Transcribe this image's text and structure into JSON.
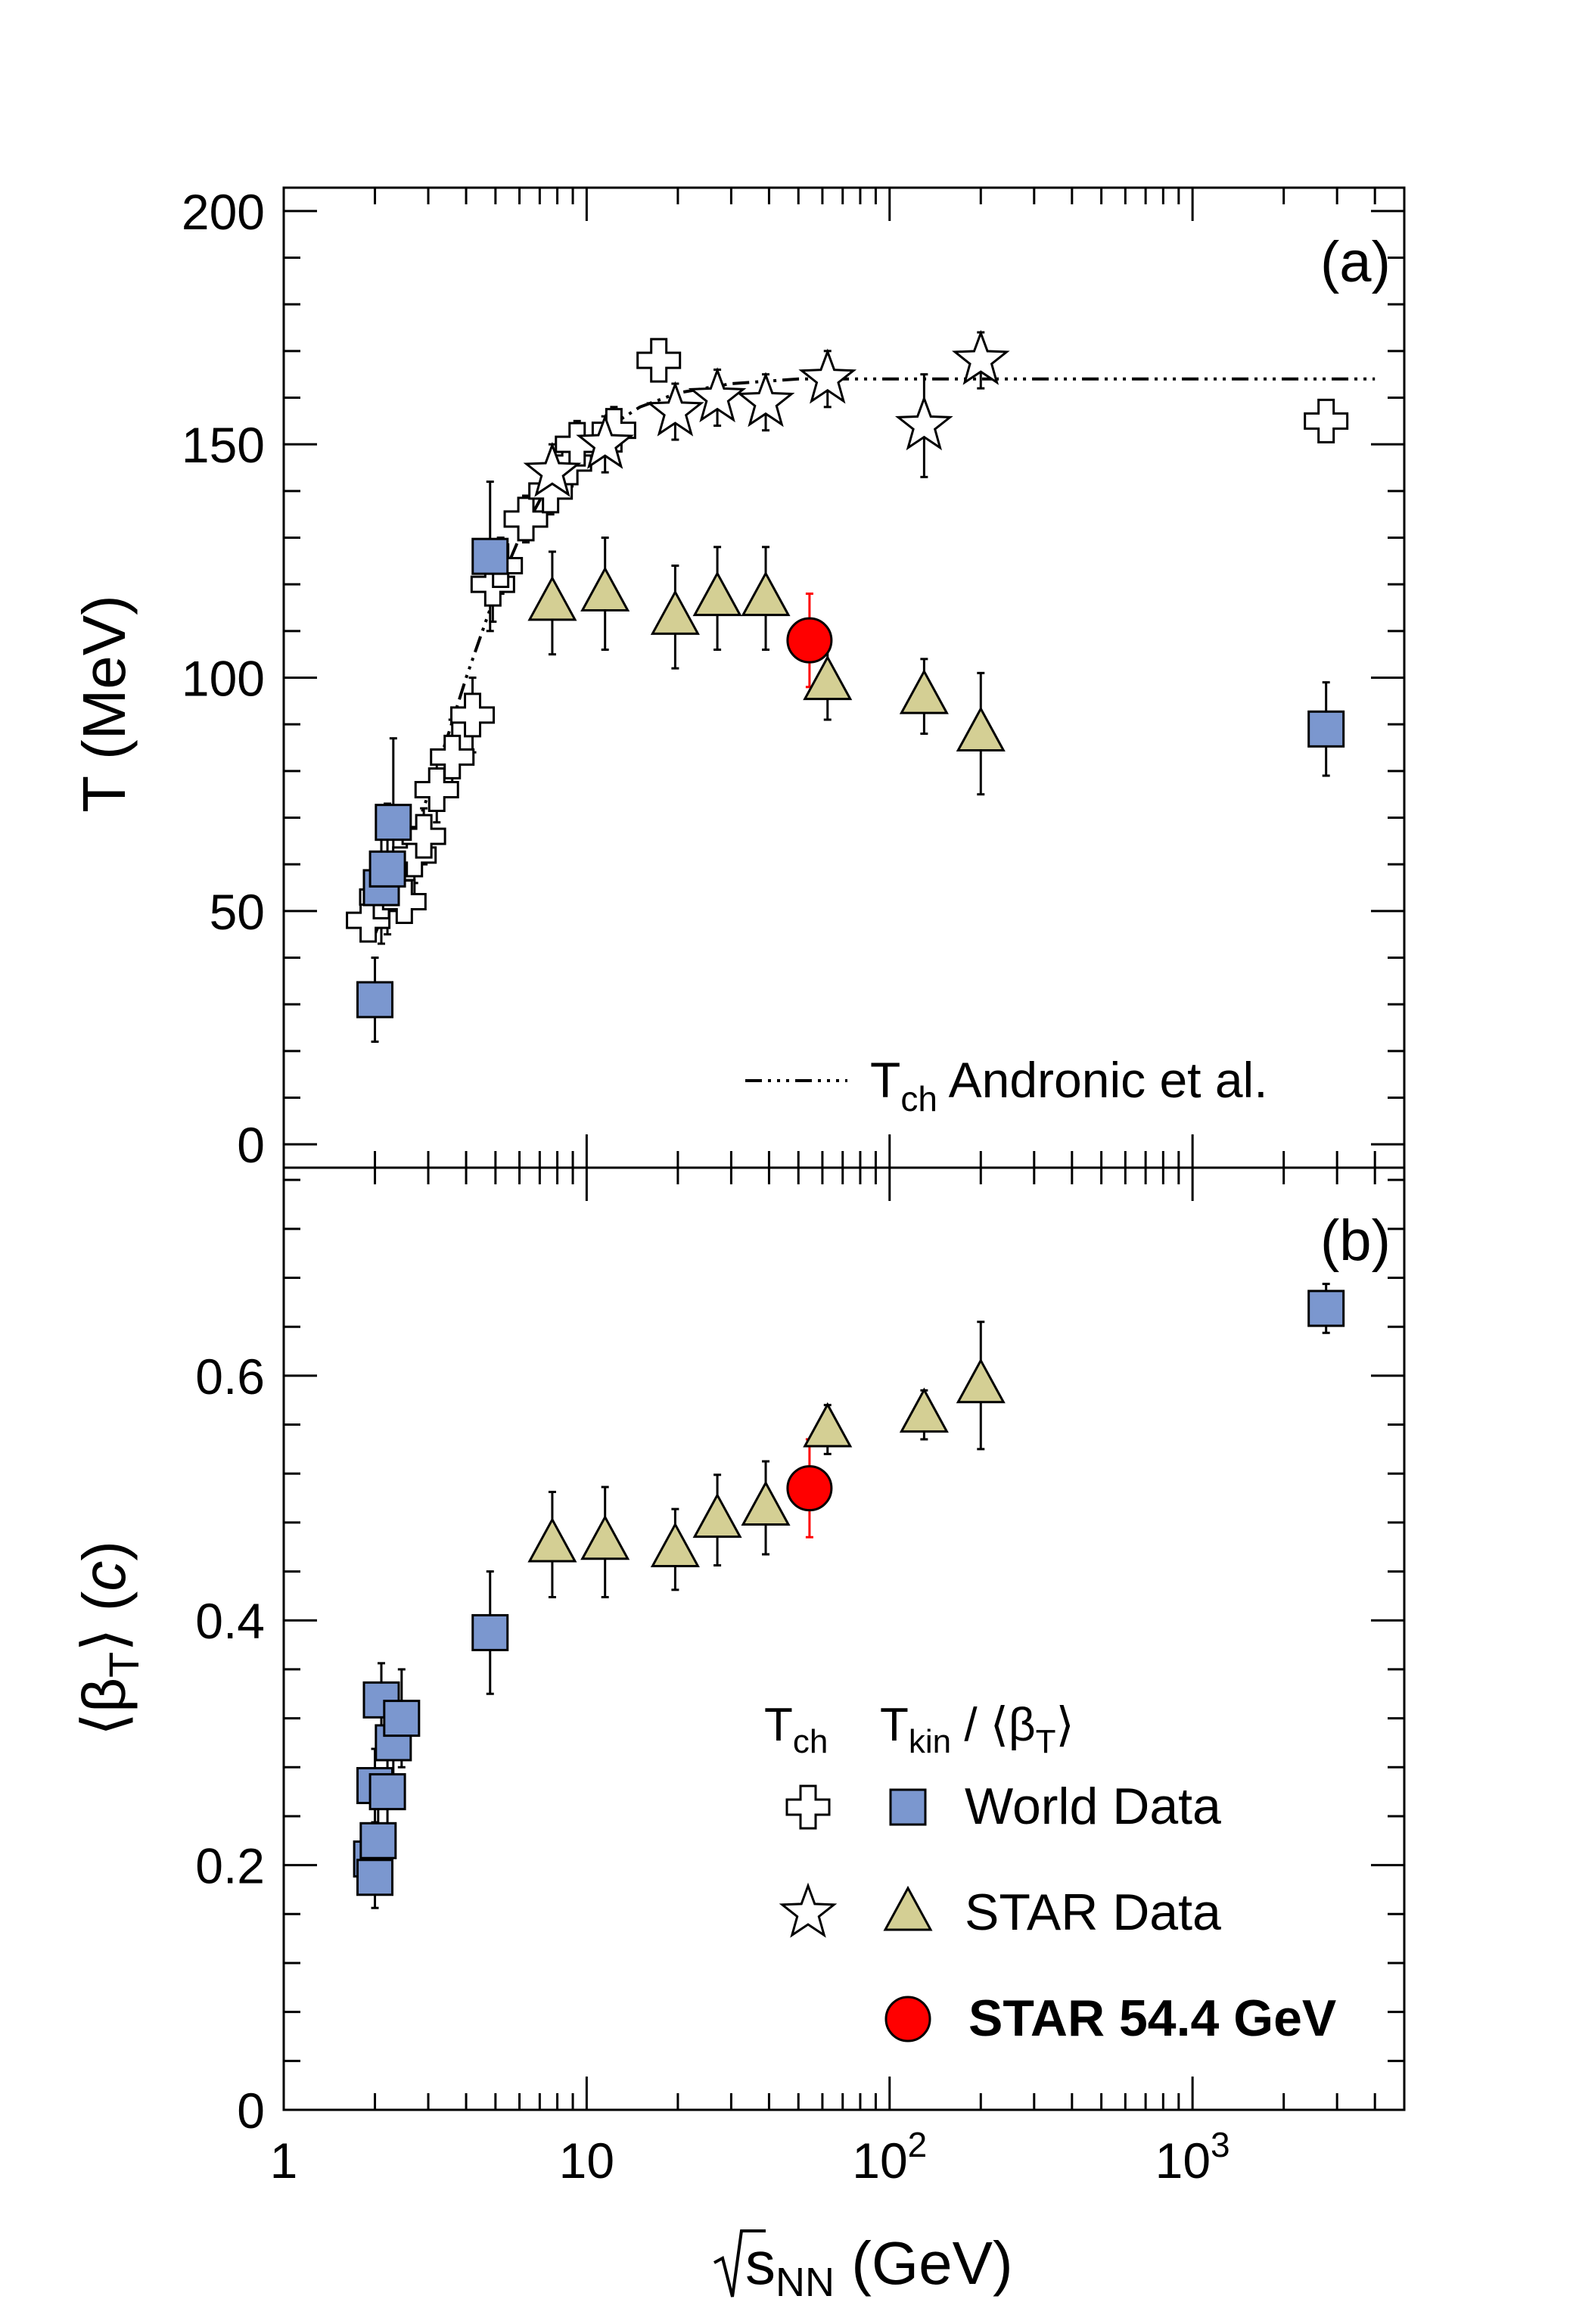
{
  "chart_data": [
    {
      "panel_label": "(a)",
      "type": "scatter",
      "ylabel": "T (MeV)",
      "xlabel": "",
      "xscale": "log",
      "xlim": [
        1,
        5000
      ],
      "ylim": [
        -5,
        205
      ],
      "yticks": [
        "0",
        "50",
        "100",
        "150",
        "200"
      ],
      "curve_label": "T",
      "curve_label_sub": "ch",
      "curve_label_rest": " Andronic et al.",
      "series": [
        {
          "name": "World Data Tch",
          "marker": "cross-open",
          "points": [
            {
              "x": 1.9,
              "y": 48,
              "err": 4
            },
            {
              "x": 2.1,
              "y": 53,
              "err": 5
            },
            {
              "x": 2.3,
              "y": 55,
              "err": 5
            },
            {
              "x": 2.5,
              "y": 52,
              "err": 4
            },
            {
              "x": 2.7,
              "y": 62,
              "err": 6
            },
            {
              "x": 2.9,
              "y": 66,
              "err": 6
            },
            {
              "x": 3.2,
              "y": 76,
              "err": 7
            },
            {
              "x": 3.6,
              "y": 83,
              "err": 8
            },
            {
              "x": 4.2,
              "y": 92,
              "err": 8
            },
            {
              "x": 4.9,
              "y": 120,
              "err": 8
            },
            {
              "x": 5.2,
              "y": 124,
              "err": 6
            },
            {
              "x": 6.3,
              "y": 134,
              "err": 5
            },
            {
              "x": 7.6,
              "y": 140,
              "err": 5
            },
            {
              "x": 8.8,
              "y": 146,
              "err": 5
            },
            {
              "x": 9.3,
              "y": 150,
              "err": 5
            },
            {
              "x": 12.3,
              "y": 153,
              "err": 5
            },
            {
              "x": 17.3,
              "y": 168,
              "err": 4
            },
            {
              "x": 2760,
              "y": 155,
              "err": 3
            }
          ]
        },
        {
          "name": "STAR Data Tch",
          "marker": "star-open",
          "points": [
            {
              "x": 7.7,
              "y": 144,
              "err": 6
            },
            {
              "x": 11.5,
              "y": 150,
              "err": 6
            },
            {
              "x": 19.6,
              "y": 157,
              "err": 6
            },
            {
              "x": 27,
              "y": 160,
              "err": 6
            },
            {
              "x": 39,
              "y": 159,
              "err": 6
            },
            {
              "x": 62.4,
              "y": 164,
              "err": 6
            },
            {
              "x": 130,
              "y": 154,
              "err": 11
            },
            {
              "x": 200,
              "y": 168,
              "err": 6
            }
          ]
        },
        {
          "name": "World Data Tkin",
          "marker": "square",
          "points": [
            {
              "x": 2.0,
              "y": 31,
              "err": 9
            },
            {
              "x": 2.1,
              "y": 55,
              "err": 12
            },
            {
              "x": 2.2,
              "y": 59,
              "err": 14
            },
            {
              "x": 2.3,
              "y": 69,
              "err": 18
            },
            {
              "x": 4.8,
              "y": 126,
              "err": 16
            },
            {
              "x": 2760,
              "y": 89,
              "err": 10
            }
          ]
        },
        {
          "name": "STAR Data Tkin",
          "marker": "triangle",
          "points": [
            {
              "x": 7.7,
              "y": 116,
              "err": 11
            },
            {
              "x": 11.5,
              "y": 118,
              "err": 12
            },
            {
              "x": 19.6,
              "y": 113,
              "err": 11
            },
            {
              "x": 27,
              "y": 117,
              "err": 11
            },
            {
              "x": 39,
              "y": 117,
              "err": 11
            },
            {
              "x": 62.4,
              "y": 99,
              "err": 8
            },
            {
              "x": 130,
              "y": 96,
              "err": 8
            },
            {
              "x": 200,
              "y": 88,
              "err": 13
            }
          ]
        },
        {
          "name": "STAR 54.4 GeV",
          "marker": "circle",
          "points": [
            {
              "x": 54.4,
              "y": 108,
              "err": 10
            }
          ]
        },
        {
          "name": "Tch Andronic et al.",
          "marker": "line",
          "points": [
            {
              "x": 2.0,
              "y": 45
            },
            {
              "x": 2.5,
              "y": 60
            },
            {
              "x": 3.0,
              "y": 75
            },
            {
              "x": 3.5,
              "y": 88
            },
            {
              "x": 4.0,
              "y": 100
            },
            {
              "x": 5.0,
              "y": 118
            },
            {
              "x": 6.0,
              "y": 130
            },
            {
              "x": 7.0,
              "y": 138
            },
            {
              "x": 8.0,
              "y": 143
            },
            {
              "x": 10,
              "y": 150
            },
            {
              "x": 12,
              "y": 154
            },
            {
              "x": 15,
              "y": 158
            },
            {
              "x": 20,
              "y": 161
            },
            {
              "x": 30,
              "y": 163
            },
            {
              "x": 50,
              "y": 164
            },
            {
              "x": 100,
              "y": 164
            },
            {
              "x": 4000,
              "y": 164
            }
          ]
        }
      ]
    },
    {
      "panel_label": "(b)",
      "type": "scatter",
      "ylabel": "⟨β",
      "ylabel_sub": "T",
      "ylabel_rest": "⟩ (",
      "ylabel_italic": "c",
      "ylabel_close": ")",
      "xlabel_prefix": "s",
      "xlabel_sub": "NN",
      "xlabel_rest": " (GeV)",
      "xscale": "log",
      "xlim": [
        1,
        5000
      ],
      "ylim": [
        0,
        0.77
      ],
      "xticks": [
        {
          "value": 1,
          "label": "1",
          "sup": ""
        },
        {
          "value": 10,
          "label": "10",
          "sup": ""
        },
        {
          "value": 100,
          "label": "10",
          "sup": "2"
        },
        {
          "value": 1000,
          "label": "10",
          "sup": "3"
        }
      ],
      "yticks": [
        "0",
        "0.2",
        "0.4",
        "0.6"
      ],
      "series": [
        {
          "name": "World Data",
          "marker": "square",
          "points": [
            {
              "x": 1.95,
              "y": 0.205,
              "err": 0.02
            },
            {
              "x": 2.0,
              "y": 0.19,
              "err": 0.025
            },
            {
              "x": 2.05,
              "y": 0.22,
              "err": 0.03
            },
            {
              "x": 2.0,
              "y": 0.265,
              "err": 0.03
            },
            {
              "x": 2.2,
              "y": 0.26,
              "err": 0.035
            },
            {
              "x": 2.1,
              "y": 0.335,
              "err": 0.03
            },
            {
              "x": 2.3,
              "y": 0.3,
              "err": 0.04
            },
            {
              "x": 2.45,
              "y": 0.32,
              "err": 0.04
            },
            {
              "x": 4.8,
              "y": 0.39,
              "err": 0.05
            },
            {
              "x": 2760,
              "y": 0.655,
              "err": 0.02
            }
          ]
        },
        {
          "name": "STAR Data",
          "marker": "triangle",
          "points": [
            {
              "x": 7.7,
              "y": 0.462,
              "err": 0.043
            },
            {
              "x": 11.5,
              "y": 0.464,
              "err": 0.045
            },
            {
              "x": 19.6,
              "y": 0.458,
              "err": 0.033
            },
            {
              "x": 27,
              "y": 0.482,
              "err": 0.037
            },
            {
              "x": 39,
              "y": 0.492,
              "err": 0.038
            },
            {
              "x": 62.4,
              "y": 0.556,
              "err": 0.02
            },
            {
              "x": 130,
              "y": 0.568,
              "err": 0.02
            },
            {
              "x": 200,
              "y": 0.592,
              "err": 0.052
            }
          ]
        },
        {
          "name": "STAR 54.4 GeV",
          "marker": "circle",
          "points": [
            {
              "x": 54.4,
              "y": 0.508,
              "err": 0.04
            }
          ]
        }
      ]
    }
  ],
  "legend": {
    "header_left": "T",
    "header_left_sub": "ch",
    "header_right": "T",
    "header_right_sub": "kin",
    "header_right_mid": " / ⟨β",
    "header_right_sub2": "T",
    "header_right_close": "⟩",
    "entries": [
      {
        "label": "World Data",
        "open_marker": "cross-open",
        "filled_marker": "square"
      },
      {
        "label": "STAR Data",
        "open_marker": "star-open",
        "filled_marker": "triangle"
      },
      {
        "label": "STAR 54.4 GeV",
        "filled_marker": "circle"
      }
    ]
  },
  "colors": {
    "square": "#7b97cf",
    "triangle": "#d4cf94",
    "circle": "#ff0000",
    "highlight_text": "#ff0000",
    "open": "#ffffff"
  }
}
